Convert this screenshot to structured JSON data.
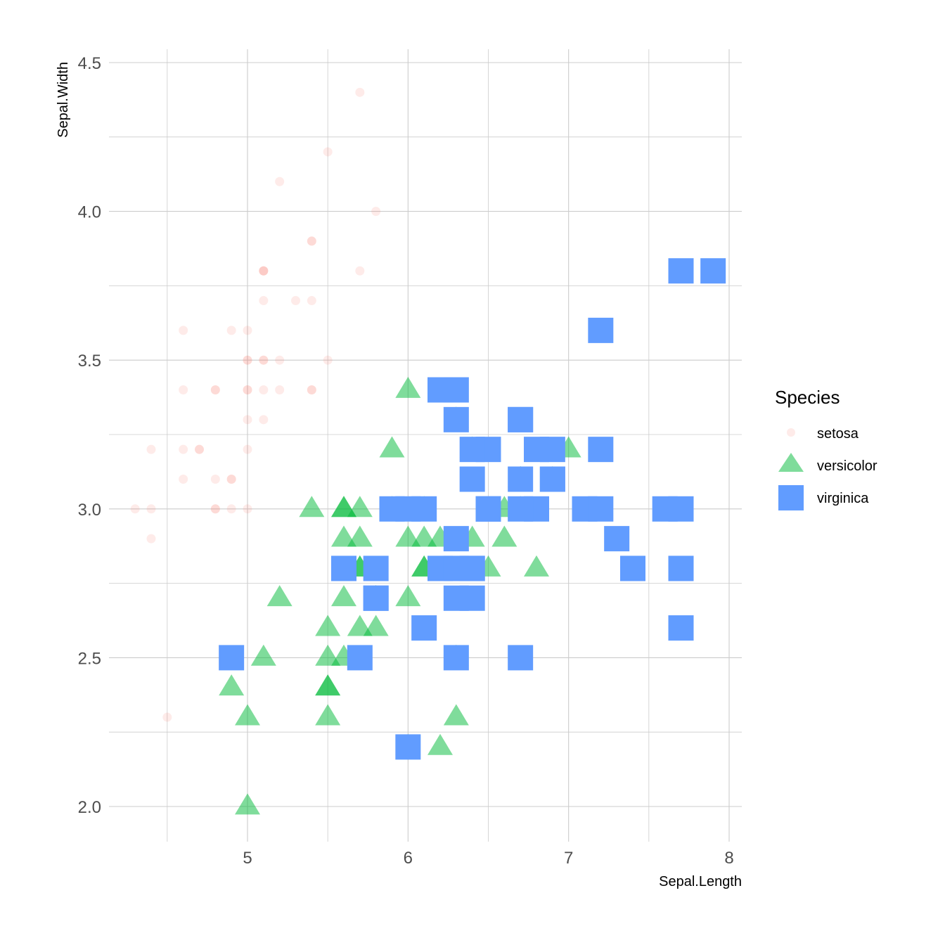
{
  "chart_data": {
    "type": "scatter",
    "xlabel": "Sepal.Length",
    "ylabel": "Sepal.Width",
    "xlim": [
      4.15,
      8.1
    ],
    "ylim": [
      1.9,
      4.5
    ],
    "x_ticks": [
      5,
      6,
      7,
      8
    ],
    "x_tick_labels": [
      "5",
      "6",
      "7",
      "8"
    ],
    "y_ticks": [
      2.0,
      2.5,
      3.0,
      3.5,
      4.0,
      4.5
    ],
    "y_tick_labels": [
      "2.0",
      "2.5",
      "3.0",
      "3.5",
      "4.0",
      "4.5"
    ],
    "grid": true,
    "legend": {
      "title": "Species",
      "placement": "right"
    },
    "series": [
      {
        "name": "setosa",
        "shape": "circle",
        "color": "#F8766D",
        "x": [
          5.1,
          4.9,
          4.7,
          4.6,
          5.0,
          5.4,
          4.6,
          5.0,
          4.4,
          4.9,
          5.4,
          4.8,
          4.8,
          4.3,
          5.8,
          5.7,
          5.4,
          5.1,
          5.7,
          5.1,
          5.4,
          5.1,
          4.6,
          5.1,
          4.8,
          5.0,
          5.0,
          5.2,
          5.2,
          4.7,
          4.8,
          5.4,
          5.2,
          5.5,
          4.9,
          5.0,
          5.5,
          4.9,
          4.4,
          5.1,
          5.0,
          4.5,
          4.4,
          5.0,
          5.1,
          4.8,
          5.1,
          4.6,
          5.3,
          5.0
        ],
        "y": [
          3.5,
          3.0,
          3.2,
          3.1,
          3.6,
          3.9,
          3.4,
          3.4,
          2.9,
          3.1,
          3.7,
          3.4,
          3.0,
          3.0,
          4.0,
          4.4,
          3.9,
          3.5,
          3.8,
          3.8,
          3.4,
          3.7,
          3.6,
          3.3,
          3.4,
          3.0,
          3.4,
          3.5,
          3.4,
          3.2,
          3.1,
          3.4,
          4.1,
          4.2,
          3.1,
          3.2,
          3.5,
          3.6,
          3.0,
          3.4,
          3.5,
          2.3,
          3.2,
          3.5,
          3.8,
          3.0,
          3.8,
          3.2,
          3.7,
          3.3
        ]
      },
      {
        "name": "versicolor",
        "shape": "triangle",
        "color": "#00BA38",
        "x": [
          7.0,
          6.4,
          6.9,
          5.5,
          6.5,
          5.7,
          6.3,
          4.9,
          6.6,
          5.2,
          5.0,
          5.9,
          6.0,
          6.1,
          5.6,
          6.7,
          5.6,
          5.8,
          6.2,
          5.6,
          5.9,
          6.1,
          6.3,
          6.1,
          6.4,
          6.6,
          6.8,
          6.7,
          6.0,
          5.7,
          5.5,
          5.5,
          5.8,
          6.0,
          5.4,
          6.0,
          6.7,
          6.3,
          5.6,
          5.5,
          5.5,
          6.1,
          5.8,
          5.0,
          5.6,
          5.7,
          5.7,
          6.2,
          5.1,
          5.7
        ],
        "y": [
          3.2,
          3.2,
          3.1,
          2.3,
          2.8,
          2.8,
          3.3,
          2.4,
          2.9,
          2.7,
          2.0,
          3.0,
          2.2,
          2.9,
          2.9,
          3.1,
          3.0,
          2.7,
          2.2,
          2.5,
          3.2,
          2.8,
          2.5,
          2.8,
          2.9,
          3.0,
          2.8,
          3.0,
          2.9,
          2.6,
          2.4,
          2.4,
          2.7,
          2.7,
          3.0,
          3.4,
          3.1,
          2.3,
          3.0,
          2.5,
          2.6,
          3.0,
          2.6,
          2.3,
          2.7,
          3.0,
          2.9,
          2.9,
          2.5,
          2.8
        ]
      },
      {
        "name": "virginica",
        "shape": "square",
        "color": "#619CFF",
        "x": [
          6.3,
          5.8,
          7.1,
          6.3,
          6.5,
          7.6,
          4.9,
          7.3,
          6.7,
          7.2,
          6.5,
          6.4,
          6.8,
          5.7,
          5.8,
          6.4,
          6.5,
          7.7,
          7.7,
          6.0,
          6.9,
          5.6,
          7.7,
          6.3,
          6.7,
          7.2,
          6.2,
          6.1,
          6.4,
          7.2,
          7.4,
          7.9,
          6.4,
          6.3,
          6.1,
          7.7,
          6.3,
          6.4,
          6.0,
          6.9,
          6.7,
          6.9,
          5.8,
          6.8,
          6.7,
          6.7,
          6.3,
          6.5,
          6.2,
          5.9
        ],
        "y": [
          3.3,
          2.7,
          3.0,
          2.9,
          3.0,
          3.0,
          2.5,
          2.9,
          2.5,
          3.6,
          3.2,
          2.7,
          3.0,
          2.5,
          2.8,
          3.2,
          3.0,
          3.8,
          2.6,
          2.2,
          3.2,
          2.8,
          2.8,
          2.7,
          3.3,
          3.2,
          2.8,
          3.0,
          2.8,
          3.0,
          2.8,
          3.8,
          2.8,
          2.8,
          2.6,
          3.0,
          3.4,
          3.1,
          3.0,
          3.1,
          3.1,
          3.1,
          2.7,
          3.2,
          3.3,
          3.0,
          2.5,
          3.0,
          3.4,
          3.0
        ]
      }
    ]
  }
}
